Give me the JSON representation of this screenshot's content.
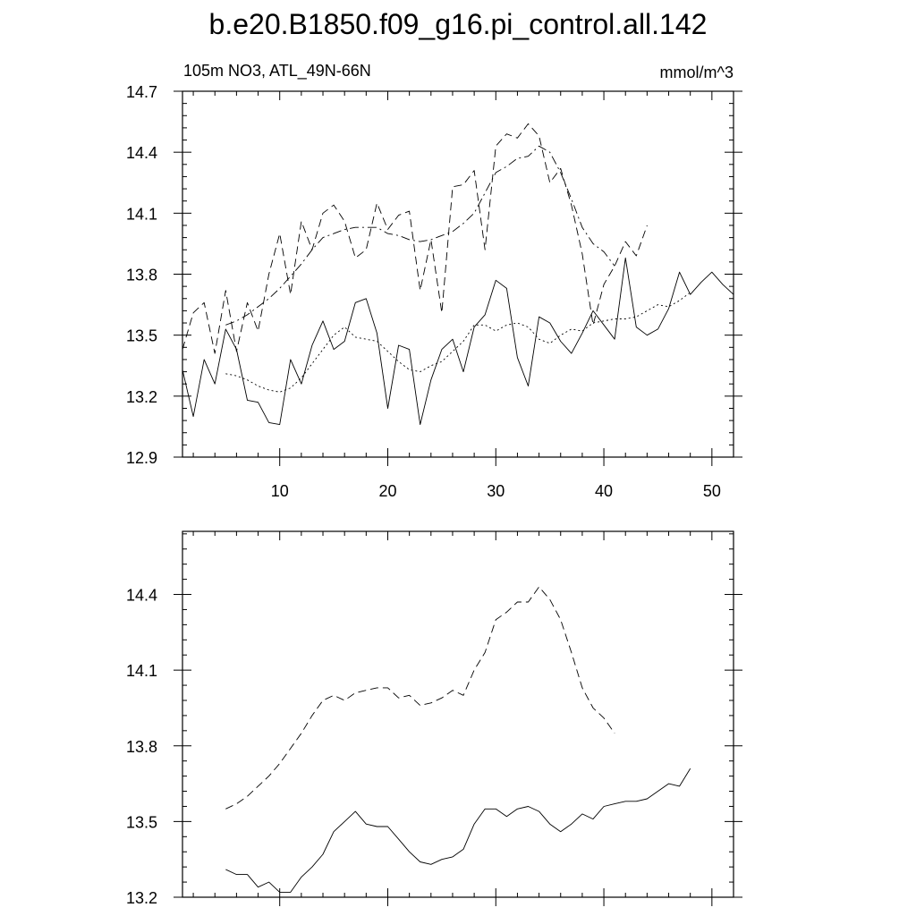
{
  "title": "b.e20.B1850.f09_g16.pi_control.all.142",
  "chart_data": [
    {
      "type": "line",
      "subtitle_left": "105m NO3, ATL_49N-66N",
      "subtitle_right": "mmol/m^3",
      "xlim": [
        1,
        52
      ],
      "ylim": [
        12.9,
        14.7
      ],
      "xticks": [
        10,
        20,
        30,
        40,
        50
      ],
      "yticks": [
        12.9,
        13.2,
        13.5,
        13.8,
        14.1,
        14.4,
        14.7
      ],
      "ytick_labels": [
        "12.9",
        "13.2",
        "13.5",
        "13.8",
        "14.1",
        "14.4",
        "14.7"
      ],
      "series": [
        {
          "style": "solid",
          "x": [
            1,
            2,
            3,
            4,
            5,
            6,
            7,
            8,
            9,
            10,
            11,
            12,
            13,
            14,
            15,
            16,
            17,
            18,
            19,
            20,
            21,
            22,
            23,
            24,
            25,
            26,
            27,
            28,
            29,
            30,
            31,
            32,
            33,
            34,
            35,
            36,
            37,
            38,
            39,
            40,
            41,
            42,
            43,
            44,
            45,
            46,
            47,
            48,
            49,
            50,
            51,
            52
          ],
          "y": [
            13.33,
            13.1,
            13.38,
            13.26,
            13.53,
            13.43,
            13.18,
            13.17,
            13.07,
            13.06,
            13.38,
            13.26,
            13.45,
            13.57,
            13.43,
            13.47,
            13.66,
            13.68,
            13.51,
            13.14,
            13.45,
            13.43,
            13.06,
            13.28,
            13.43,
            13.48,
            13.32,
            13.54,
            13.6,
            13.77,
            13.73,
            13.39,
            13.25,
            13.59,
            13.56,
            13.47,
            13.41,
            13.51,
            13.62,
            13.55,
            13.48,
            13.88,
            13.54,
            13.5,
            13.53,
            13.63,
            13.81,
            13.7,
            13.76,
            13.81,
            13.75,
            13.7
          ]
        },
        {
          "style": "dashed",
          "x": [
            1,
            2,
            3,
            4,
            5,
            6,
            7,
            8,
            9,
            10,
            11,
            12,
            13,
            14,
            15,
            16,
            17,
            18,
            19,
            20,
            21,
            22,
            23,
            24,
            25,
            26,
            27,
            28,
            29,
            30,
            31,
            32,
            33,
            34,
            35,
            36,
            37,
            38,
            39,
            40,
            41,
            42,
            43,
            44
          ],
          "y": [
            13.43,
            13.61,
            13.66,
            13.41,
            13.72,
            13.42,
            13.66,
            13.52,
            13.8,
            14.0,
            13.7,
            14.06,
            13.92,
            14.1,
            14.14,
            14.06,
            13.88,
            13.92,
            14.15,
            14.02,
            14.09,
            14.11,
            13.72,
            13.97,
            13.61,
            14.23,
            14.24,
            14.31,
            13.92,
            14.43,
            14.49,
            14.47,
            14.54,
            14.48,
            14.25,
            14.32,
            14.14,
            13.9,
            13.55,
            13.75,
            13.84,
            13.96,
            13.89,
            14.04
          ]
        },
        {
          "style": "dash-dot",
          "x": [
            5,
            6,
            7,
            8,
            9,
            10,
            11,
            12,
            13,
            14,
            15,
            16,
            17,
            18,
            19,
            20,
            21,
            22,
            23,
            24,
            25,
            26,
            27,
            28,
            29,
            30,
            31,
            32,
            33,
            34,
            35,
            36,
            37,
            38,
            39,
            40,
            41
          ],
          "y": [
            13.55,
            13.57,
            13.6,
            13.64,
            13.68,
            13.73,
            13.79,
            13.85,
            13.92,
            13.98,
            14.0,
            14.02,
            14.03,
            14.03,
            14.03,
            14.0,
            13.99,
            13.97,
            13.96,
            13.97,
            13.99,
            14.01,
            14.05,
            14.1,
            14.2,
            14.3,
            14.33,
            14.37,
            14.38,
            14.43,
            14.4,
            14.3,
            14.17,
            14.03,
            13.95,
            13.91,
            13.84
          ]
        },
        {
          "style": "dotted",
          "x": [
            5,
            6,
            7,
            8,
            9,
            10,
            11,
            12,
            13,
            14,
            15,
            16,
            17,
            18,
            19,
            20,
            21,
            22,
            23,
            24,
            25,
            26,
            27,
            28,
            29,
            30,
            31,
            32,
            33,
            34,
            35,
            36,
            37,
            38,
            39,
            40,
            41,
            42,
            43,
            44,
            45,
            46,
            47,
            48
          ],
          "y": [
            13.31,
            13.3,
            13.28,
            13.25,
            13.23,
            13.22,
            13.24,
            13.29,
            13.36,
            13.43,
            13.5,
            13.54,
            13.49,
            13.48,
            13.47,
            13.42,
            13.37,
            13.33,
            13.32,
            13.35,
            13.37,
            13.42,
            13.47,
            13.55,
            13.55,
            13.52,
            13.55,
            13.56,
            13.54,
            13.48,
            13.46,
            13.5,
            13.53,
            13.52,
            13.56,
            13.57,
            13.58,
            13.58,
            13.59,
            13.62,
            13.65,
            13.64,
            13.67,
            13.71
          ]
        }
      ]
    },
    {
      "type": "line",
      "xlim": [
        1,
        52
      ],
      "ylim": [
        13.2,
        14.65
      ],
      "xticks": [
        10,
        20,
        30,
        40,
        50
      ],
      "yticks": [
        13.2,
        13.5,
        13.8,
        14.1,
        14.4
      ],
      "ytick_labels": [
        "13.2",
        "13.5",
        "13.8",
        "14.1",
        "14.4"
      ],
      "series": [
        {
          "style": "solid",
          "x": [
            5,
            6,
            7,
            8,
            9,
            10,
            11,
            12,
            13,
            14,
            15,
            16,
            17,
            18,
            19,
            20,
            21,
            22,
            23,
            24,
            25,
            26,
            27,
            28,
            29,
            30,
            31,
            32,
            33,
            34,
            35,
            36,
            37,
            38,
            39,
            40,
            41,
            42,
            43,
            44,
            45,
            46,
            47,
            48
          ],
          "y": [
            13.31,
            13.29,
            13.29,
            13.24,
            13.26,
            13.22,
            13.22,
            13.28,
            13.32,
            13.37,
            13.46,
            13.5,
            13.54,
            13.49,
            13.48,
            13.48,
            13.43,
            13.38,
            13.34,
            13.33,
            13.35,
            13.36,
            13.39,
            13.49,
            13.55,
            13.55,
            13.52,
            13.55,
            13.56,
            13.54,
            13.49,
            13.46,
            13.49,
            13.53,
            13.51,
            13.56,
            13.57,
            13.58,
            13.58,
            13.59,
            13.62,
            13.65,
            13.64,
            13.71
          ]
        },
        {
          "style": "dashed",
          "x": [
            5,
            6,
            7,
            8,
            9,
            10,
            11,
            12,
            13,
            14,
            15,
            16,
            17,
            18,
            19,
            20,
            21,
            22,
            23,
            24,
            25,
            26,
            27,
            28,
            29,
            30,
            31,
            32,
            33,
            34,
            35,
            36,
            37,
            38,
            39,
            40,
            41
          ],
          "y": [
            13.55,
            13.57,
            13.6,
            13.64,
            13.68,
            13.73,
            13.79,
            13.85,
            13.92,
            13.98,
            14.0,
            13.98,
            14.01,
            14.02,
            14.03,
            14.03,
            13.99,
            14.0,
            13.96,
            13.97,
            13.99,
            14.02,
            14.0,
            14.1,
            14.17,
            14.3,
            14.33,
            14.37,
            14.37,
            14.43,
            14.38,
            14.3,
            14.17,
            14.03,
            13.95,
            13.91,
            13.85
          ]
        }
      ]
    }
  ]
}
